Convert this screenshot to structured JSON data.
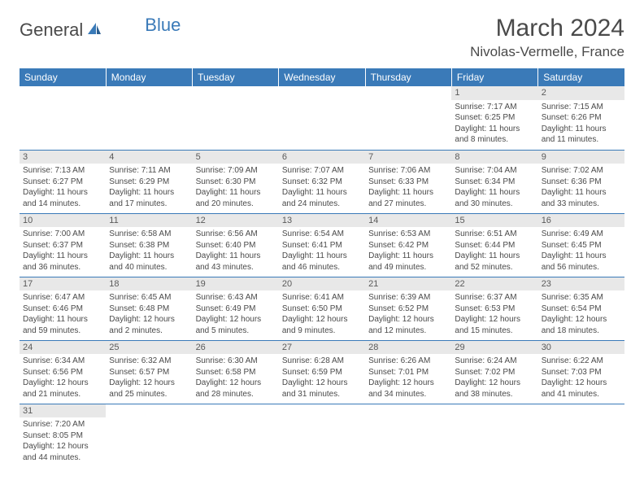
{
  "brand": {
    "part1": "General",
    "part2": "Blue"
  },
  "title": "March 2024",
  "location": "Nivolas-Vermelle, France",
  "day_headers": [
    "Sunday",
    "Monday",
    "Tuesday",
    "Wednesday",
    "Thursday",
    "Friday",
    "Saturday"
  ],
  "colors": {
    "header_bg": "#3a7ab8",
    "header_fg": "#ffffff",
    "daynum_bg": "#e8e8e8",
    "row_border": "#3a7ab8",
    "text": "#4a4a4a",
    "logo_blue": "#3a7ab8"
  },
  "month_start_weekday": 5,
  "days_in_month": 31,
  "days": {
    "1": {
      "sunrise": "7:17 AM",
      "sunset": "6:25 PM",
      "daylight": "11 hours and 8 minutes."
    },
    "2": {
      "sunrise": "7:15 AM",
      "sunset": "6:26 PM",
      "daylight": "11 hours and 11 minutes."
    },
    "3": {
      "sunrise": "7:13 AM",
      "sunset": "6:27 PM",
      "daylight": "11 hours and 14 minutes."
    },
    "4": {
      "sunrise": "7:11 AM",
      "sunset": "6:29 PM",
      "daylight": "11 hours and 17 minutes."
    },
    "5": {
      "sunrise": "7:09 AM",
      "sunset": "6:30 PM",
      "daylight": "11 hours and 20 minutes."
    },
    "6": {
      "sunrise": "7:07 AM",
      "sunset": "6:32 PM",
      "daylight": "11 hours and 24 minutes."
    },
    "7": {
      "sunrise": "7:06 AM",
      "sunset": "6:33 PM",
      "daylight": "11 hours and 27 minutes."
    },
    "8": {
      "sunrise": "7:04 AM",
      "sunset": "6:34 PM",
      "daylight": "11 hours and 30 minutes."
    },
    "9": {
      "sunrise": "7:02 AM",
      "sunset": "6:36 PM",
      "daylight": "11 hours and 33 minutes."
    },
    "10": {
      "sunrise": "7:00 AM",
      "sunset": "6:37 PM",
      "daylight": "11 hours and 36 minutes."
    },
    "11": {
      "sunrise": "6:58 AM",
      "sunset": "6:38 PM",
      "daylight": "11 hours and 40 minutes."
    },
    "12": {
      "sunrise": "6:56 AM",
      "sunset": "6:40 PM",
      "daylight": "11 hours and 43 minutes."
    },
    "13": {
      "sunrise": "6:54 AM",
      "sunset": "6:41 PM",
      "daylight": "11 hours and 46 minutes."
    },
    "14": {
      "sunrise": "6:53 AM",
      "sunset": "6:42 PM",
      "daylight": "11 hours and 49 minutes."
    },
    "15": {
      "sunrise": "6:51 AM",
      "sunset": "6:44 PM",
      "daylight": "11 hours and 52 minutes."
    },
    "16": {
      "sunrise": "6:49 AM",
      "sunset": "6:45 PM",
      "daylight": "11 hours and 56 minutes."
    },
    "17": {
      "sunrise": "6:47 AM",
      "sunset": "6:46 PM",
      "daylight": "11 hours and 59 minutes."
    },
    "18": {
      "sunrise": "6:45 AM",
      "sunset": "6:48 PM",
      "daylight": "12 hours and 2 minutes."
    },
    "19": {
      "sunrise": "6:43 AM",
      "sunset": "6:49 PM",
      "daylight": "12 hours and 5 minutes."
    },
    "20": {
      "sunrise": "6:41 AM",
      "sunset": "6:50 PM",
      "daylight": "12 hours and 9 minutes."
    },
    "21": {
      "sunrise": "6:39 AM",
      "sunset": "6:52 PM",
      "daylight": "12 hours and 12 minutes."
    },
    "22": {
      "sunrise": "6:37 AM",
      "sunset": "6:53 PM",
      "daylight": "12 hours and 15 minutes."
    },
    "23": {
      "sunrise": "6:35 AM",
      "sunset": "6:54 PM",
      "daylight": "12 hours and 18 minutes."
    },
    "24": {
      "sunrise": "6:34 AM",
      "sunset": "6:56 PM",
      "daylight": "12 hours and 21 minutes."
    },
    "25": {
      "sunrise": "6:32 AM",
      "sunset": "6:57 PM",
      "daylight": "12 hours and 25 minutes."
    },
    "26": {
      "sunrise": "6:30 AM",
      "sunset": "6:58 PM",
      "daylight": "12 hours and 28 minutes."
    },
    "27": {
      "sunrise": "6:28 AM",
      "sunset": "6:59 PM",
      "daylight": "12 hours and 31 minutes."
    },
    "28": {
      "sunrise": "6:26 AM",
      "sunset": "7:01 PM",
      "daylight": "12 hours and 34 minutes."
    },
    "29": {
      "sunrise": "6:24 AM",
      "sunset": "7:02 PM",
      "daylight": "12 hours and 38 minutes."
    },
    "30": {
      "sunrise": "6:22 AM",
      "sunset": "7:03 PM",
      "daylight": "12 hours and 41 minutes."
    },
    "31": {
      "sunrise": "7:20 AM",
      "sunset": "8:05 PM",
      "daylight": "12 hours and 44 minutes."
    }
  },
  "labels": {
    "sunrise": "Sunrise: ",
    "sunset": "Sunset: ",
    "daylight": "Daylight: "
  }
}
